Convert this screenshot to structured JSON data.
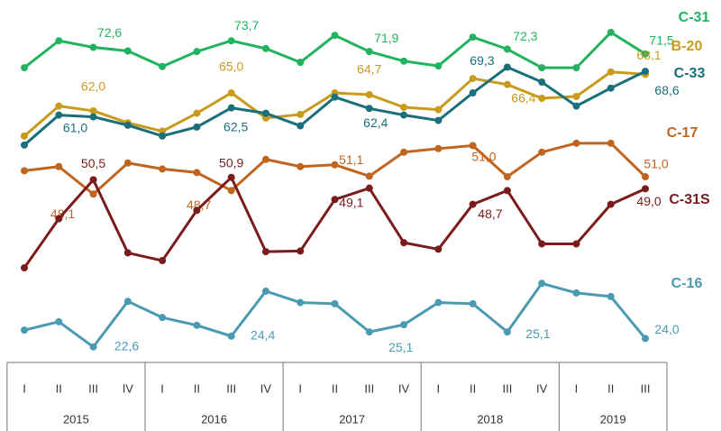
{
  "chart_data": {
    "type": "line",
    "categories": [
      "I",
      "II",
      "III",
      "IV",
      "I",
      "II",
      "III",
      "IV",
      "I",
      "II",
      "III",
      "IV",
      "I",
      "II",
      "III",
      "IV",
      "I",
      "II",
      "III"
    ],
    "groups": [
      {
        "name": "2015",
        "count": 4
      },
      {
        "name": "2016",
        "count": 4
      },
      {
        "name": "2017",
        "count": 4
      },
      {
        "name": "2018",
        "count": 4
      },
      {
        "name": "2019",
        "count": 3
      }
    ],
    "ylim": [
      20,
      79
    ],
    "grid": false,
    "series": [
      {
        "name": "C-31",
        "color": "#22b35f",
        "values": [
          69.2,
          73.7,
          72.6,
          72.0,
          69.4,
          71.9,
          73.7,
          72.4,
          70.1,
          74.6,
          71.9,
          70.3,
          69.5,
          74.3,
          72.3,
          69.2,
          69.2,
          75.1,
          71.5
        ],
        "value_labels": [
          null,
          null,
          "72,6",
          null,
          null,
          null,
          "73,7",
          null,
          null,
          null,
          "71,9",
          null,
          null,
          null,
          "72,3",
          null,
          null,
          null,
          "71,5"
        ]
      },
      {
        "name": "B-20",
        "color": "#c89b1c",
        "values": [
          57.8,
          62.8,
          62.0,
          60.0,
          58.6,
          61.6,
          65.0,
          60.8,
          61.4,
          65.0,
          64.7,
          62.6,
          62.2,
          67.4,
          66.4,
          64.1,
          64.4,
          68.5,
          68.1
        ],
        "value_labels": [
          null,
          null,
          "62,0",
          null,
          null,
          null,
          "65,0",
          null,
          null,
          null,
          "64,7",
          null,
          null,
          null,
          "66,4",
          null,
          null,
          null,
          "68,1"
        ]
      },
      {
        "name": "C-33",
        "color": "#1b6f7a",
        "values": [
          56.3,
          61.3,
          61.0,
          59.6,
          57.8,
          59.3,
          62.5,
          61.6,
          59.5,
          64.3,
          62.4,
          61.3,
          60.4,
          65.0,
          69.3,
          66.8,
          62.8,
          65.8,
          68.6
        ],
        "value_labels": [
          null,
          null,
          "61,0",
          null,
          null,
          null,
          "62,5",
          null,
          null,
          null,
          "62,4",
          null,
          null,
          null,
          "69,3",
          null,
          null,
          null,
          "68,6"
        ]
      },
      {
        "name": "C-17",
        "color": "#c0651f",
        "values": [
          52.0,
          52.7,
          48.1,
          53.3,
          52.3,
          51.7,
          48.7,
          53.9,
          52.7,
          53.0,
          51.1,
          55.1,
          55.7,
          56.2,
          51.0,
          55.1,
          56.6,
          56.6,
          51.0
        ],
        "value_labels": [
          null,
          null,
          "48,1",
          null,
          null,
          null,
          "48,7",
          null,
          null,
          null,
          "51,1",
          null,
          null,
          null,
          "51,0",
          null,
          null,
          null,
          "51,0"
        ]
      },
      {
        "name": "C-31S",
        "color": "#7b1c1c",
        "values": [
          35.8,
          44.0,
          50.5,
          38.3,
          37.0,
          45.4,
          50.9,
          38.5,
          38.6,
          47.2,
          49.1,
          40.0,
          38.9,
          46.4,
          48.7,
          39.8,
          39.8,
          46.4,
          49.0
        ],
        "value_labels": [
          null,
          null,
          "50,5",
          null,
          null,
          null,
          "50,9",
          null,
          null,
          null,
          "49,1",
          null,
          null,
          null,
          "48,7",
          null,
          null,
          null,
          "49,0"
        ]
      },
      {
        "name": "C-16",
        "color": "#4a9bb2",
        "values": [
          25.4,
          26.8,
          22.6,
          30.2,
          27.5,
          26.2,
          24.4,
          31.9,
          30.0,
          29.8,
          25.1,
          26.3,
          30.0,
          29.8,
          25.1,
          33.2,
          31.6,
          31.0,
          24.0
        ],
        "value_labels": [
          null,
          null,
          "22,6",
          null,
          null,
          null,
          "24,4",
          null,
          null,
          null,
          "25,1",
          null,
          null,
          null,
          "25,1",
          null,
          null,
          null,
          "24,0"
        ]
      }
    ]
  }
}
